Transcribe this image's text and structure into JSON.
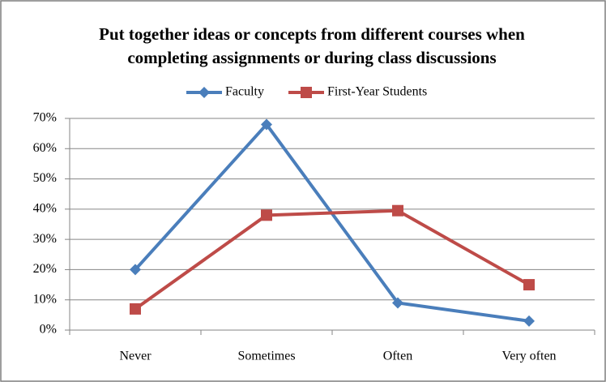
{
  "chart_data": {
    "type": "line",
    "title": [
      "Put together ideas or concepts from different courses when",
      "completing assignments or during class discussions"
    ],
    "categories": [
      "Never",
      "Sometimes",
      "Often",
      "Very often"
    ],
    "series": [
      {
        "name": "Faculty",
        "color": "#4a7ebb",
        "marker": "diamond",
        "values": [
          20,
          68,
          9,
          3
        ]
      },
      {
        "name": "First-Year Students",
        "color": "#be4b48",
        "marker": "square",
        "values": [
          7,
          38,
          39.5,
          15
        ]
      }
    ],
    "ylim": [
      0,
      70
    ],
    "yticks": [
      {
        "value": 0,
        "label": "0%"
      },
      {
        "value": 10,
        "label": "10%"
      },
      {
        "value": 20,
        "label": "20%"
      },
      {
        "value": 30,
        "label": "30%"
      },
      {
        "value": 40,
        "label": "40%"
      },
      {
        "value": 50,
        "label": "50%"
      },
      {
        "value": 60,
        "label": "60%"
      },
      {
        "value": 70,
        "label": "70%"
      }
    ],
    "grid": true,
    "legend": "top"
  }
}
